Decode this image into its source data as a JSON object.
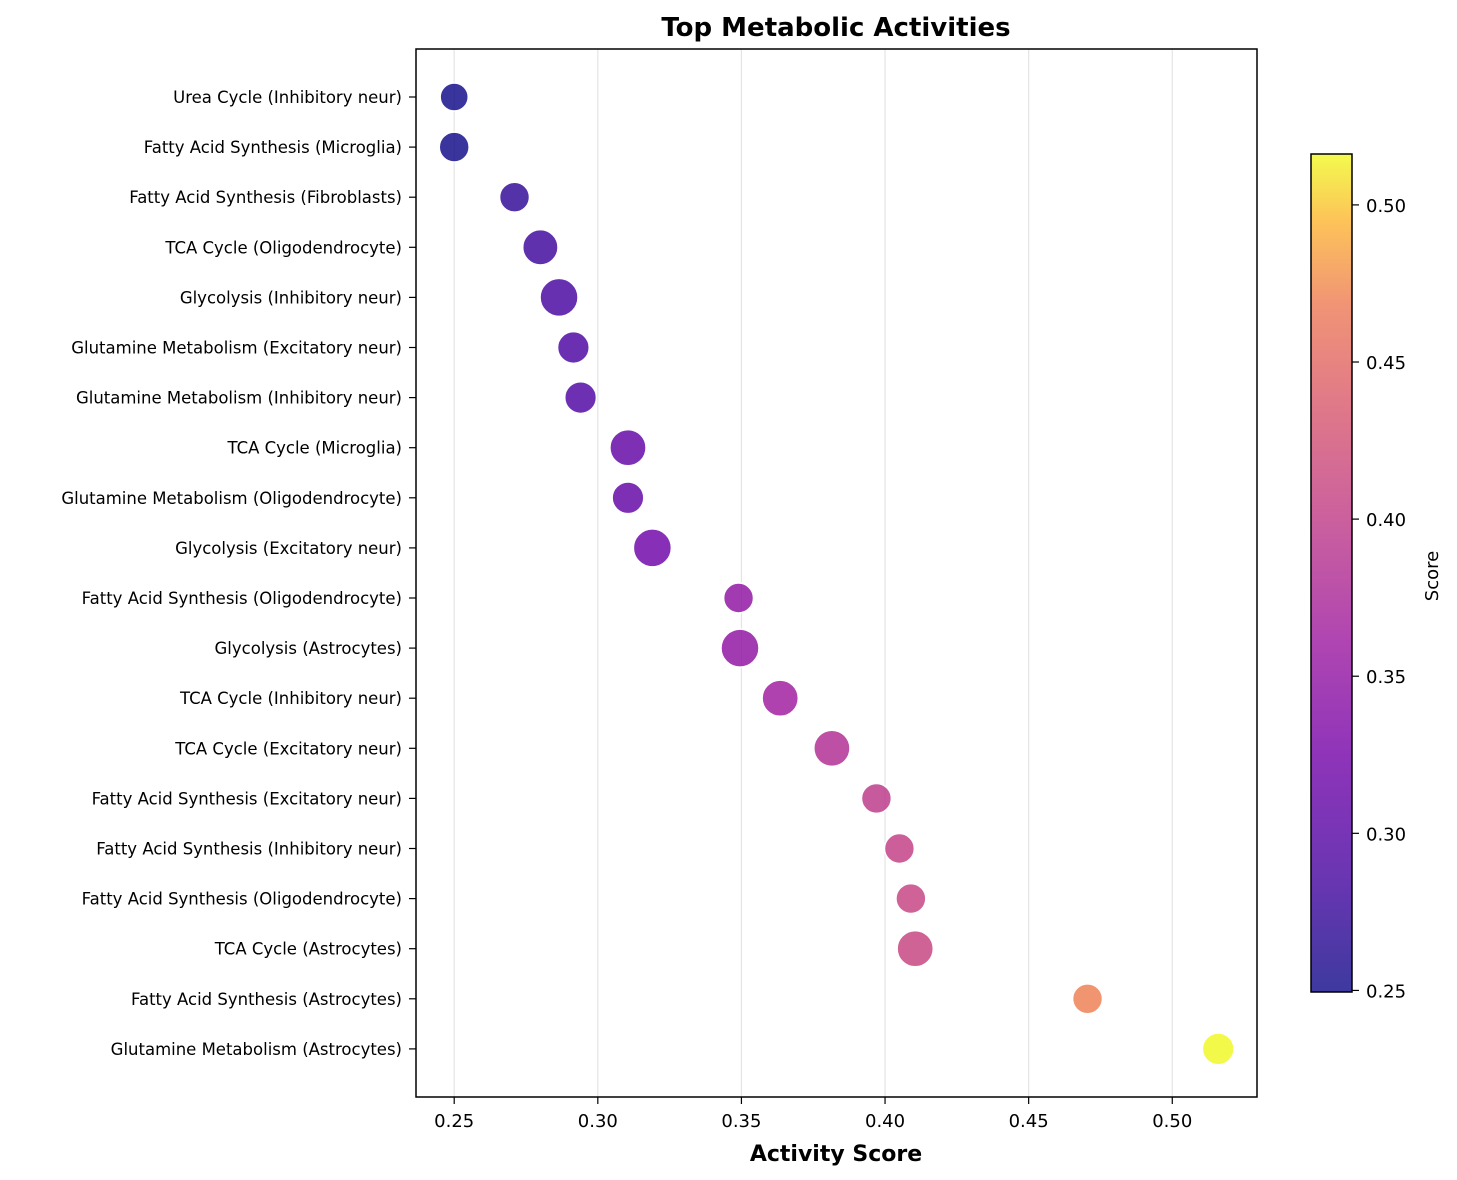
{
  "chart_data": {
    "type": "scatter",
    "title": "Top Metabolic Activities",
    "xlabel": "Activity Score",
    "xlim": [
      0.2367,
      0.5295
    ],
    "x_ticks": [
      "0.25",
      "0.30",
      "0.35",
      "0.40",
      "0.45",
      "0.50"
    ],
    "x_tick_values": [
      0.25,
      0.3,
      0.35,
      0.4,
      0.45,
      0.5
    ],
    "grid": "x-major",
    "colormap": "plasma",
    "colorbar": {
      "label": "Score",
      "range": [
        0.2495,
        0.5162
      ],
      "ticks": [
        "0.25",
        "0.30",
        "0.35",
        "0.40",
        "0.45",
        "0.50"
      ],
      "tick_values": [
        0.25,
        0.3,
        0.35,
        0.4,
        0.45,
        0.5
      ]
    },
    "points": [
      {
        "label": "Urea Cycle (Inhibitory neur)",
        "x": 0.25,
        "size": 0.45
      },
      {
        "label": "Fatty Acid Synthesis (Microglia)",
        "x": 0.25,
        "size": 0.55
      },
      {
        "label": "Fatty Acid Synthesis (Fibroblasts)",
        "x": 0.271,
        "size": 0.55
      },
      {
        "label": "TCA Cycle (Oligodendrocyte)",
        "x": 0.28,
        "size": 0.85
      },
      {
        "label": "Glycolysis (Inhibitory neur)",
        "x": 0.2865,
        "size": 1.0
      },
      {
        "label": "Glutamine Metabolism (Excitatory neur)",
        "x": 0.2915,
        "size": 0.65
      },
      {
        "label": "Glutamine Metabolism (Inhibitory neur)",
        "x": 0.294,
        "size": 0.65
      },
      {
        "label": "TCA Cycle (Microglia)",
        "x": 0.3105,
        "size": 0.9
      },
      {
        "label": "Glutamine Metabolism (Oligodendrocyte)",
        "x": 0.3105,
        "size": 0.65
      },
      {
        "label": "Glycolysis (Excitatory neur)",
        "x": 0.319,
        "size": 1.0
      },
      {
        "label": "Fatty Acid Synthesis (Oligodendrocyte)",
        "x": 0.349,
        "size": 0.55
      },
      {
        "label": "Glycolysis (Astrocytes)",
        "x": 0.3495,
        "size": 1.0
      },
      {
        "label": "TCA Cycle (Inhibitory neur)",
        "x": 0.3635,
        "size": 0.9
      },
      {
        "label": "TCA Cycle (Excitatory neur)",
        "x": 0.3815,
        "size": 0.9
      },
      {
        "label": "Fatty Acid Synthesis (Excitatory neur)",
        "x": 0.397,
        "size": 0.55
      },
      {
        "label": "Fatty Acid Synthesis (Inhibitory neur)",
        "x": 0.405,
        "size": 0.55
      },
      {
        "label": "Fatty Acid Synthesis (Oligodendrocyte)",
        "x": 0.409,
        "size": 0.55
      },
      {
        "label": "TCA Cycle (Astrocytes)",
        "x": 0.4105,
        "size": 0.9
      },
      {
        "label": "Fatty Acid Synthesis (Astrocytes)",
        "x": 0.4705,
        "size": 0.55
      },
      {
        "label": "Glutamine Metabolism (Astrocytes)",
        "x": 0.516,
        "size": 0.65
      }
    ]
  }
}
